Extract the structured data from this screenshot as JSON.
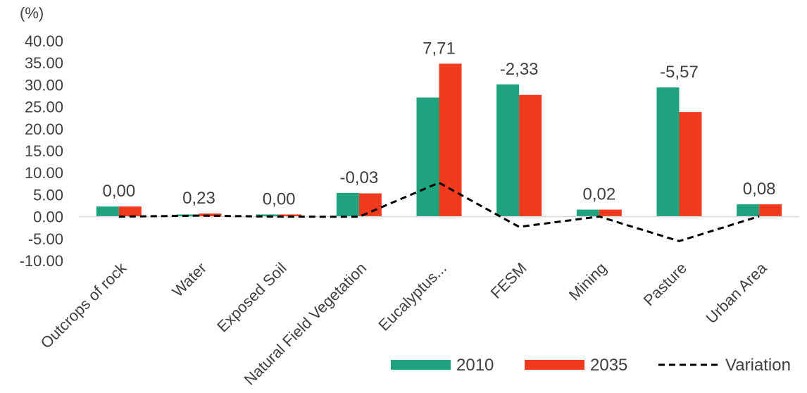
{
  "chart_data": {
    "type": "bar",
    "ylabel": "(%)",
    "ylim": [
      -10,
      40
    ],
    "yticks": [
      "40.00",
      "35.00",
      "30.00",
      "25.00",
      "20.00",
      "15.00",
      "10.00",
      "5.00",
      "0.00",
      "-5.00",
      "-10.00"
    ],
    "ytick_values": [
      40,
      35,
      30,
      25,
      20,
      15,
      10,
      5,
      0,
      -5,
      -10
    ],
    "categories": [
      "Outcrops of rock",
      "Water",
      "Exposed Soil",
      "Natural Field Vegetation",
      "Eucalyptus...",
      "FESM",
      "Mining",
      "Pasture",
      "Urban Area"
    ],
    "series": [
      {
        "name": "2010",
        "color": "#1fa37f",
        "values": [
          2.3,
          0.5,
          0.5,
          5.4,
          27.1,
          30.1,
          1.6,
          29.4,
          2.8
        ]
      },
      {
        "name": "2035",
        "color": "#f03a1e",
        "values": [
          2.3,
          0.7,
          0.5,
          5.3,
          34.8,
          27.7,
          1.6,
          23.8,
          2.8
        ]
      },
      {
        "name": "Variation",
        "type": "line",
        "style": "dashed",
        "color": "#000000",
        "values": [
          0.0,
          0.23,
          0.0,
          -0.03,
          7.71,
          -2.33,
          0.02,
          -5.57,
          0.08
        ]
      }
    ],
    "data_labels": [
      "0,00",
      "0,23",
      "0,00",
      "-0,03",
      "7,71",
      "-2,33",
      "0,02",
      "-5,57",
      "0,08"
    ],
    "grid": false,
    "legend_position": "bottom-right"
  }
}
